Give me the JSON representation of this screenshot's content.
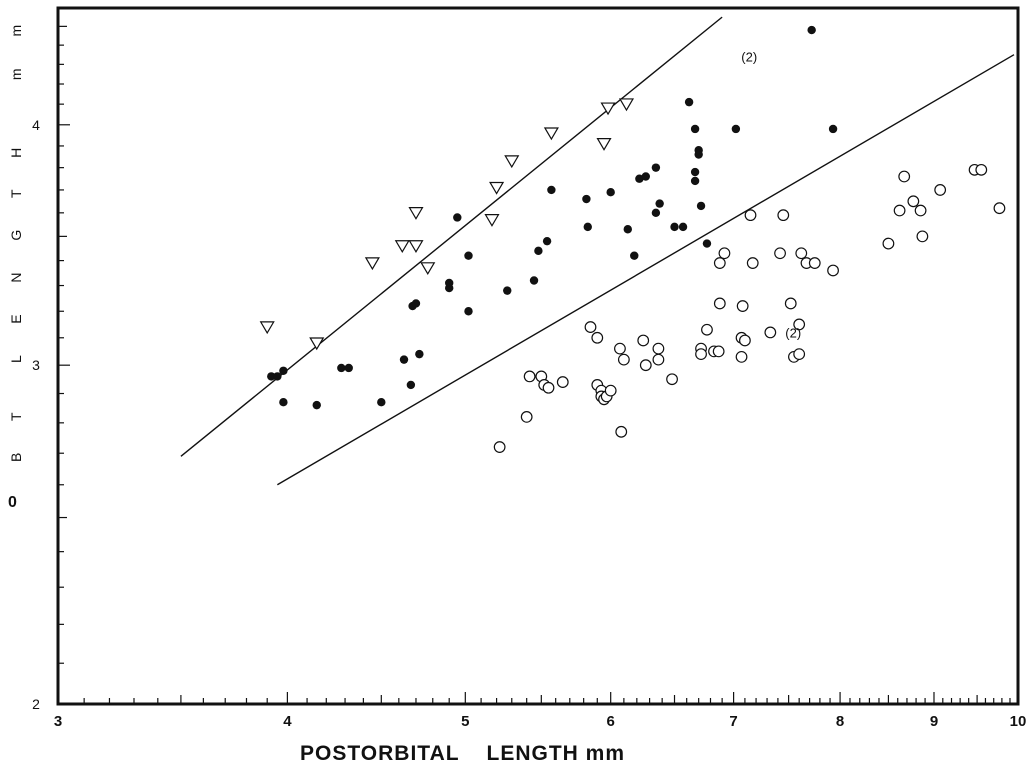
{
  "chart_data": {
    "type": "scatter",
    "title": "",
    "xlabel": "POSTORBITAL    LENGTH mm",
    "ylabel": "B T  L E N G T H   m m",
    "margin_mark": "0",
    "x_scale": "log",
    "y_scale": "log",
    "xlim": [
      3,
      10
    ],
    "ylim": [
      2,
      4.6
    ],
    "x_ticks": [
      {
        "value": 3,
        "label": "3"
      },
      {
        "value": 4,
        "label": "4"
      },
      {
        "value": 5,
        "label": "5"
      },
      {
        "value": 6,
        "label": "6"
      },
      {
        "value": 7,
        "label": "7"
      },
      {
        "value": 8,
        "label": "8"
      },
      {
        "value": 9,
        "label": "9"
      },
      {
        "value": 10,
        "label": "10"
      }
    ],
    "y_ticks": [
      {
        "value": 2,
        "label": "2"
      },
      {
        "value": 3,
        "label": "3"
      },
      {
        "value": 4,
        "label": "4"
      }
    ],
    "grid": false,
    "lines": [
      {
        "x": [
          3.5,
          6.9
        ],
        "y": [
          2.69,
          4.55
        ]
      },
      {
        "x": [
          3.95,
          9.95
        ],
        "y": [
          2.6,
          4.35
        ]
      }
    ],
    "annotations": [
      {
        "x": 7.05,
        "y": 4.34,
        "text": "(2)"
      },
      {
        "x": 7.45,
        "y": 3.12,
        "text": "(2)"
      }
    ],
    "series": [
      {
        "marker": "triangle",
        "points": [
          [
            3.9,
            3.14
          ],
          [
            4.15,
            3.08
          ],
          [
            4.45,
            3.39
          ],
          [
            4.62,
            3.46
          ],
          [
            4.7,
            3.46
          ],
          [
            4.7,
            3.6
          ],
          [
            4.77,
            3.37
          ],
          [
            5.17,
            3.57
          ],
          [
            5.2,
            3.71
          ],
          [
            5.3,
            3.83
          ],
          [
            5.57,
            3.96
          ],
          [
            5.95,
            3.91
          ],
          [
            5.98,
            4.08
          ],
          [
            6.12,
            4.1
          ]
        ]
      },
      {
        "marker": "filled-circle",
        "points": [
          [
            3.92,
            2.96
          ],
          [
            3.95,
            2.96
          ],
          [
            3.98,
            2.98
          ],
          [
            3.98,
            2.87
          ],
          [
            4.15,
            2.86
          ],
          [
            4.28,
            2.99
          ],
          [
            4.32,
            2.99
          ],
          [
            4.5,
            2.87
          ],
          [
            4.63,
            3.02
          ],
          [
            4.67,
            2.93
          ],
          [
            4.68,
            3.22
          ],
          [
            4.7,
            3.23
          ],
          [
            4.72,
            3.04
          ],
          [
            4.9,
            3.29
          ],
          [
            4.9,
            3.31
          ],
          [
            4.95,
            3.58
          ],
          [
            5.02,
            3.42
          ],
          [
            5.02,
            3.2
          ],
          [
            5.27,
            3.28
          ],
          [
            5.45,
            3.32
          ],
          [
            5.48,
            3.44
          ],
          [
            5.54,
            3.48
          ],
          [
            5.57,
            3.7
          ],
          [
            5.82,
            3.66
          ],
          [
            5.83,
            3.54
          ],
          [
            6.0,
            3.69
          ],
          [
            6.13,
            3.53
          ],
          [
            6.18,
            3.42
          ],
          [
            6.22,
            3.75
          ],
          [
            6.27,
            3.76
          ],
          [
            6.35,
            3.8
          ],
          [
            6.35,
            3.6
          ],
          [
            6.38,
            3.64
          ],
          [
            6.5,
            3.54
          ],
          [
            6.57,
            3.54
          ],
          [
            6.62,
            4.11
          ],
          [
            6.67,
            3.98
          ],
          [
            6.67,
            3.74
          ],
          [
            6.67,
            3.78
          ],
          [
            6.7,
            3.88
          ],
          [
            6.7,
            3.86
          ],
          [
            6.72,
            3.63
          ],
          [
            6.77,
            3.47
          ],
          [
            7.02,
            3.98
          ],
          [
            7.72,
            4.48
          ],
          [
            7.93,
            3.98
          ]
        ]
      },
      {
        "marker": "open-circle",
        "points": [
          [
            5.22,
            2.72
          ],
          [
            5.4,
            2.82
          ],
          [
            5.42,
            2.96
          ],
          [
            5.5,
            2.96
          ],
          [
            5.52,
            2.93
          ],
          [
            5.55,
            2.92
          ],
          [
            5.65,
            2.94
          ],
          [
            5.85,
            3.14
          ],
          [
            5.9,
            3.1
          ],
          [
            5.9,
            2.93
          ],
          [
            5.93,
            2.91
          ],
          [
            5.93,
            2.89
          ],
          [
            5.95,
            2.88
          ],
          [
            5.97,
            2.89
          ],
          [
            6.0,
            2.91
          ],
          [
            6.07,
            3.06
          ],
          [
            6.1,
            3.02
          ],
          [
            6.08,
            2.77
          ],
          [
            6.25,
            3.09
          ],
          [
            6.27,
            3.0
          ],
          [
            6.37,
            3.06
          ],
          [
            6.37,
            3.02
          ],
          [
            6.48,
            2.95
          ],
          [
            6.72,
            3.06
          ],
          [
            6.72,
            3.04
          ],
          [
            6.77,
            3.13
          ],
          [
            6.83,
            3.05
          ],
          [
            6.87,
            3.05
          ],
          [
            6.88,
            3.23
          ],
          [
            6.88,
            3.39
          ],
          [
            6.92,
            3.43
          ],
          [
            7.07,
            3.03
          ],
          [
            7.07,
            3.1
          ],
          [
            7.08,
            3.22
          ],
          [
            7.1,
            3.09
          ],
          [
            7.15,
            3.59
          ],
          [
            7.17,
            3.39
          ],
          [
            7.33,
            3.12
          ],
          [
            7.42,
            3.43
          ],
          [
            7.45,
            3.59
          ],
          [
            7.52,
            3.23
          ],
          [
            7.55,
            3.03
          ],
          [
            7.6,
            3.04
          ],
          [
            7.6,
            3.15
          ],
          [
            7.62,
            3.43
          ],
          [
            7.67,
            3.39
          ],
          [
            7.75,
            3.39
          ],
          [
            7.93,
            3.36
          ],
          [
            8.5,
            3.47
          ],
          [
            8.62,
            3.61
          ],
          [
            8.67,
            3.76
          ],
          [
            8.77,
            3.65
          ],
          [
            8.85,
            3.61
          ],
          [
            8.87,
            3.5
          ],
          [
            9.07,
            3.7
          ],
          [
            9.47,
            3.79
          ],
          [
            9.55,
            3.79
          ],
          [
            9.77,
            3.62
          ]
        ]
      }
    ]
  }
}
